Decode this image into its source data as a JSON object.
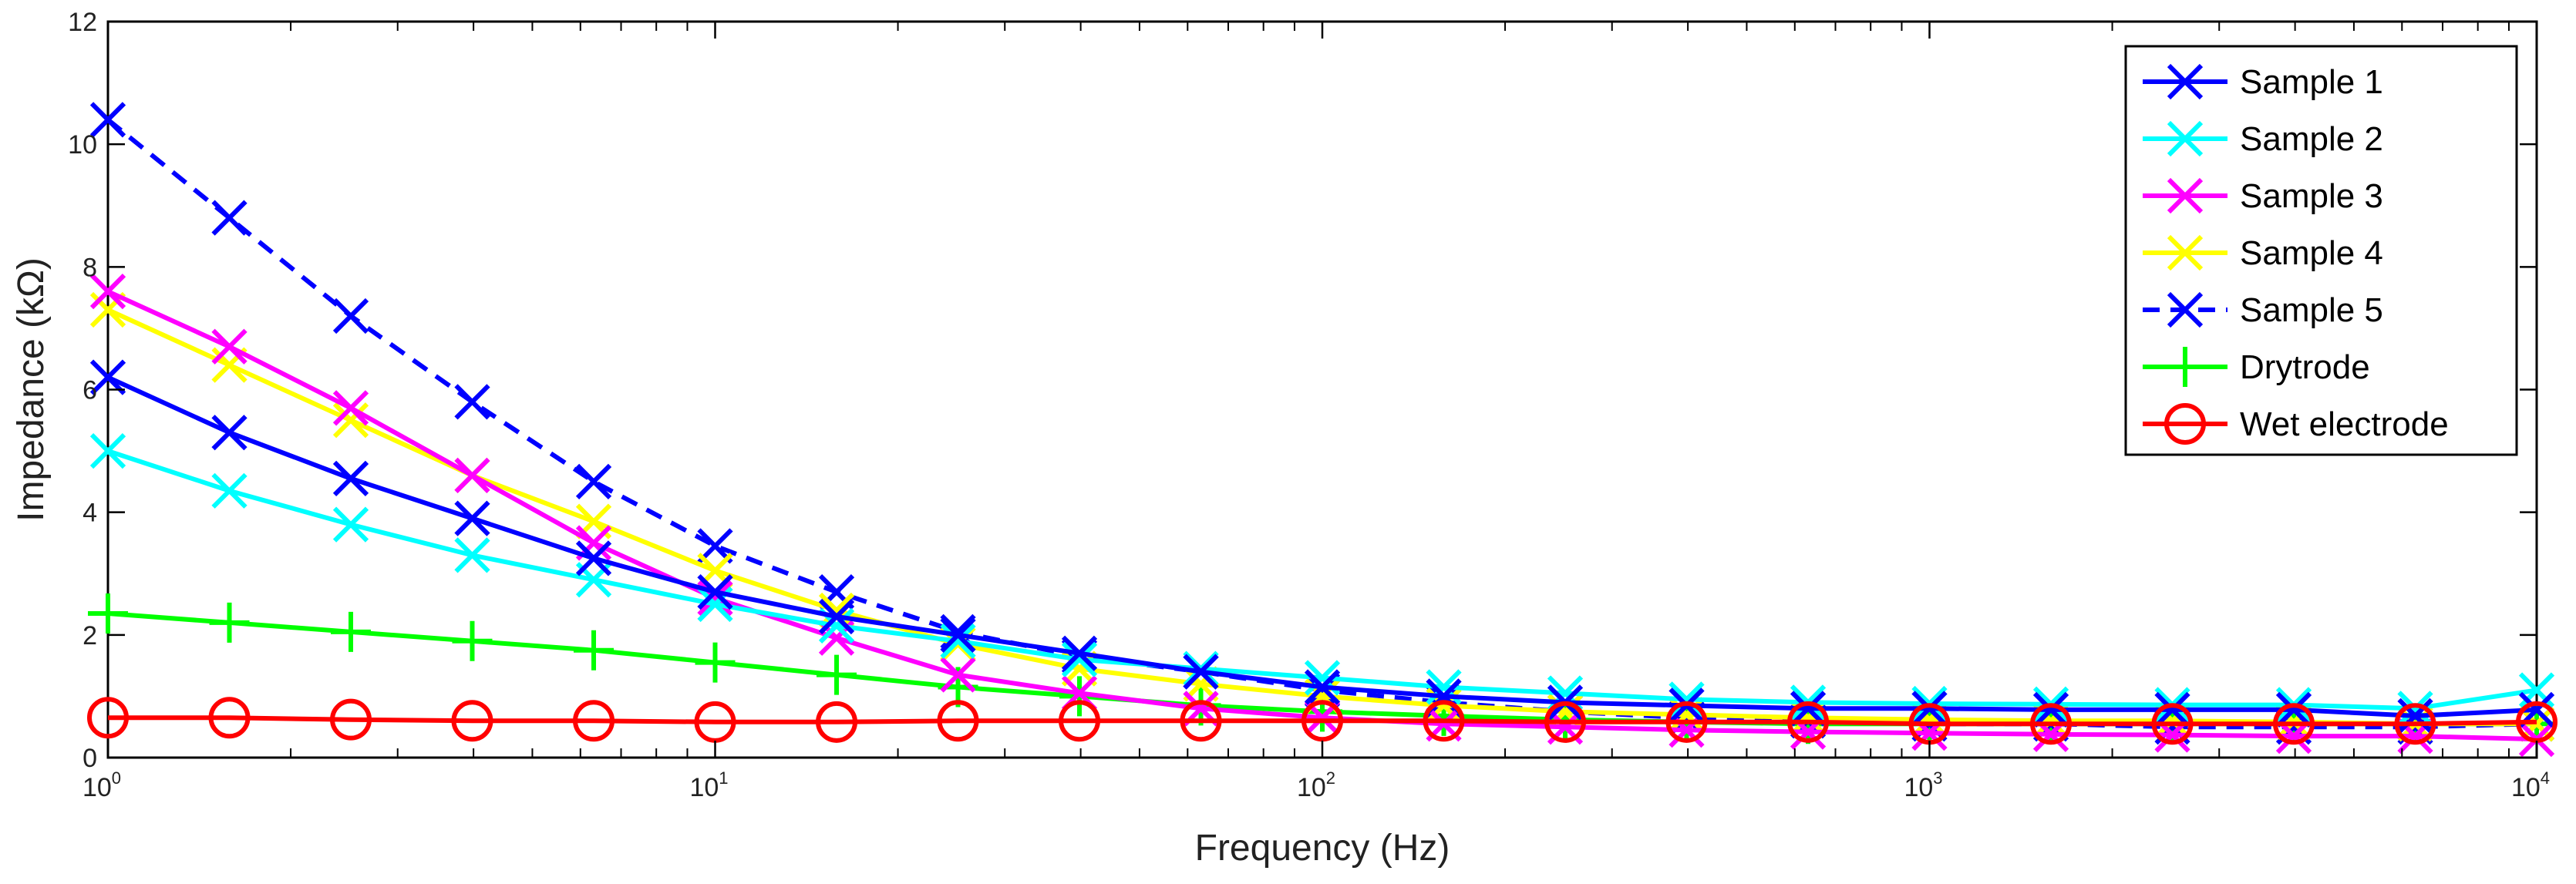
{
  "chart_data": {
    "type": "line",
    "xscale": "log",
    "xlabel": "Frequency (Hz)",
    "ylabel": "Impedance (kΩ)",
    "xlim": [
      1,
      10000
    ],
    "ylim": [
      0,
      12
    ],
    "x_ticks": [
      {
        "base": "10",
        "exp": "0",
        "value": 1
      },
      {
        "base": "10",
        "exp": "1",
        "value": 10
      },
      {
        "base": "10",
        "exp": "2",
        "value": 100
      },
      {
        "base": "10",
        "exp": "3",
        "value": 1000
      },
      {
        "base": "10",
        "exp": "4",
        "value": 10000
      }
    ],
    "y_ticks": [
      "0",
      "2",
      "4",
      "6",
      "8",
      "10",
      "12"
    ],
    "grid": false,
    "legend_position": "top-right",
    "x": [
      1,
      1.585,
      2.512,
      3.981,
      6.31,
      10,
      15.85,
      25.12,
      39.81,
      63.1,
      100,
      158.5,
      251.2,
      398.1,
      631,
      1000,
      1585,
      2512,
      3981,
      6310,
      10000
    ],
    "series": [
      {
        "name": "Sample 1",
        "color": "#0000ff",
        "marker": "x",
        "dash": "solid",
        "values": [
          6.2,
          5.3,
          4.55,
          3.9,
          3.25,
          2.7,
          2.3,
          2.0,
          1.7,
          1.4,
          1.15,
          1.0,
          0.9,
          0.85,
          0.8,
          0.8,
          0.78,
          0.78,
          0.78,
          0.68,
          0.78
        ]
      },
      {
        "name": "Sample 2",
        "color": "#00ffff",
        "marker": "x",
        "dash": "solid",
        "values": [
          5.0,
          4.35,
          3.8,
          3.3,
          2.9,
          2.5,
          2.15,
          1.9,
          1.6,
          1.45,
          1.3,
          1.15,
          1.05,
          0.95,
          0.9,
          0.88,
          0.87,
          0.86,
          0.86,
          0.8,
          1.1
        ]
      },
      {
        "name": "Sample 3",
        "color": "#ff00ff",
        "marker": "x",
        "dash": "solid",
        "values": [
          7.6,
          6.7,
          5.7,
          4.6,
          3.5,
          2.6,
          1.95,
          1.35,
          1.05,
          0.8,
          0.65,
          0.55,
          0.5,
          0.45,
          0.42,
          0.4,
          0.38,
          0.37,
          0.35,
          0.35,
          0.3
        ]
      },
      {
        "name": "Sample 4",
        "color": "#ffff00",
        "marker": "x",
        "dash": "solid",
        "values": [
          7.3,
          6.4,
          5.5,
          4.6,
          3.85,
          3.05,
          2.4,
          1.85,
          1.45,
          1.2,
          1.0,
          0.85,
          0.75,
          0.7,
          0.65,
          0.62,
          0.6,
          0.6,
          0.58,
          0.55,
          0.55
        ]
      },
      {
        "name": "Sample 5",
        "color": "#0000ff",
        "marker": "x",
        "dash": "dashed",
        "values": [
          10.4,
          8.8,
          7.2,
          5.8,
          4.5,
          3.45,
          2.7,
          2.05,
          1.65,
          1.4,
          1.1,
          0.9,
          0.75,
          0.65,
          0.6,
          0.55,
          0.55,
          0.5,
          0.5,
          0.5,
          0.55
        ]
      },
      {
        "name": "Drytrode",
        "color": "#00ff00",
        "marker": "plus",
        "dash": "solid",
        "values": [
          2.35,
          2.2,
          2.05,
          1.9,
          1.75,
          1.55,
          1.35,
          1.15,
          1.0,
          0.85,
          0.75,
          0.68,
          0.62,
          0.58,
          0.55,
          0.55,
          0.55,
          0.55,
          0.55,
          0.55,
          0.55
        ]
      },
      {
        "name": "Wet electrode",
        "color": "#ff0000",
        "marker": "circle",
        "dash": "solid",
        "values": [
          0.65,
          0.65,
          0.62,
          0.6,
          0.6,
          0.58,
          0.58,
          0.6,
          0.6,
          0.6,
          0.6,
          0.6,
          0.58,
          0.58,
          0.58,
          0.55,
          0.55,
          0.55,
          0.55,
          0.55,
          0.58
        ]
      }
    ]
  }
}
